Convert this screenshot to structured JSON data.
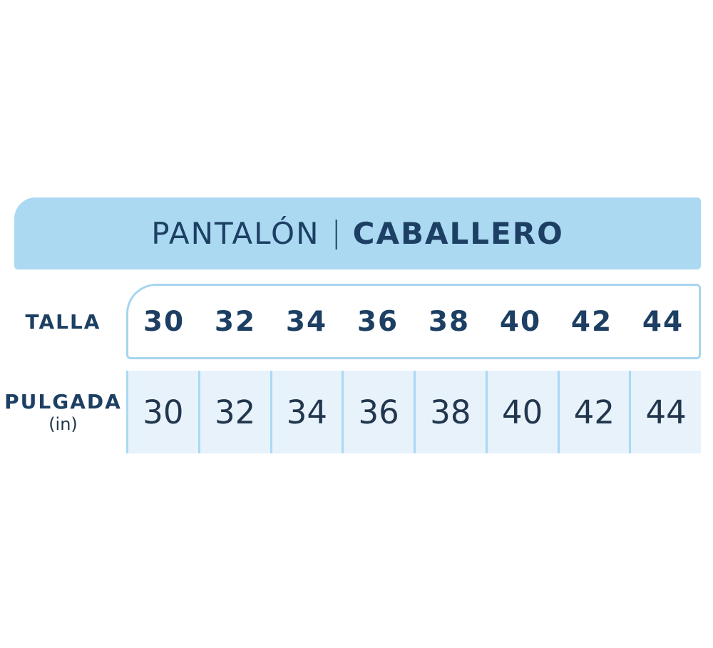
{
  "header": {
    "title_primary": "PANTALÓN",
    "separator": "|",
    "title_secondary": "CABALLERO"
  },
  "chart_data": {
    "type": "table",
    "title": "PANTALÓN | CABALLERO",
    "rows": [
      {
        "label": "TALLA",
        "values": [
          "30",
          "32",
          "34",
          "36",
          "38",
          "40",
          "42",
          "44"
        ]
      },
      {
        "label": "PULGADA",
        "unit": "(in)",
        "values": [
          "30",
          "32",
          "34",
          "36",
          "38",
          "40",
          "42",
          "44"
        ]
      }
    ]
  },
  "colors": {
    "banner_blue": "#ABD9F2",
    "cell_blue": "#E7F2FB",
    "line_blue": "#A6D5EF",
    "navy_text": "#1C3F63",
    "ink_text": "#22374E"
  }
}
